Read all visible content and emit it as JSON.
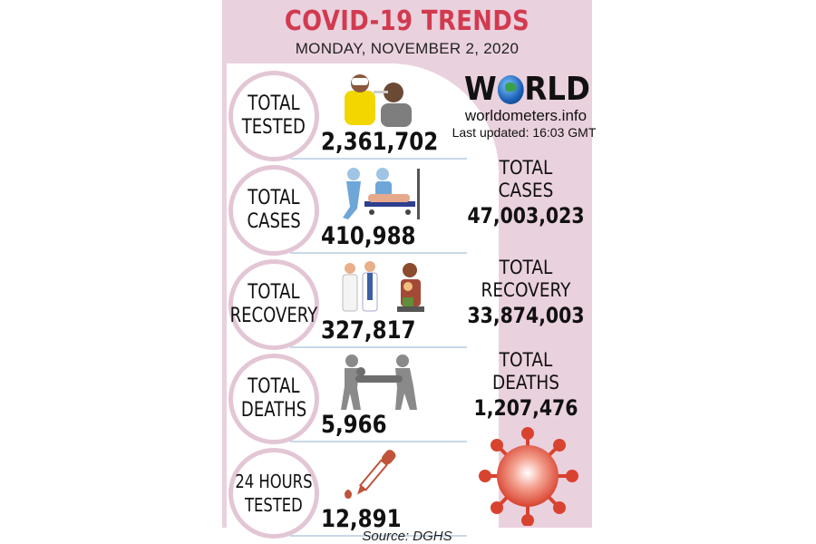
{
  "header": {
    "title": "COVID-19 TRENDS",
    "date": "MONDAY, NOVEMBER 2, 2020"
  },
  "local_stats": [
    {
      "label_lines": [
        "TOTAL",
        "TESTED"
      ],
      "value": "2,361,702",
      "icon": "testing-swab-icon"
    },
    {
      "label_lines": [
        "TOTAL",
        "CASES"
      ],
      "value": "410,988",
      "icon": "hospital-stretcher-icon"
    },
    {
      "label_lines": [
        "TOTAL",
        "RECOVERY"
      ],
      "value": "327,817",
      "icon": "doctors-family-icon"
    },
    {
      "label_lines": [
        "TOTAL",
        "DEATHS"
      ],
      "value": "5,966",
      "icon": "stretcher-carry-icon"
    },
    {
      "label_lines": [
        "24 HOURS",
        "TESTED"
      ],
      "value": "12,891",
      "icon": "dropper-icon"
    }
  ],
  "world": {
    "logo_text_left": "W",
    "logo_text_right": "RLD",
    "site": "worldometers.info",
    "last_updated": "Last updated: 16:03 GMT",
    "stats": [
      {
        "label_lines": [
          "TOTAL",
          "CASES"
        ],
        "value": "47,003,023"
      },
      {
        "label_lines": [
          "TOTAL",
          "RECOVERY"
        ],
        "value": "33,874,003"
      },
      {
        "label_lines": [
          "TOTAL",
          "DEATHS"
        ],
        "value": "1,207,476"
      }
    ]
  },
  "footer": {
    "source": "Source: DGHS"
  },
  "colors": {
    "panel": "#ead1de",
    "title": "#d23a4f",
    "circle_border": "#e3c6d5",
    "virus": "#e0523f"
  }
}
